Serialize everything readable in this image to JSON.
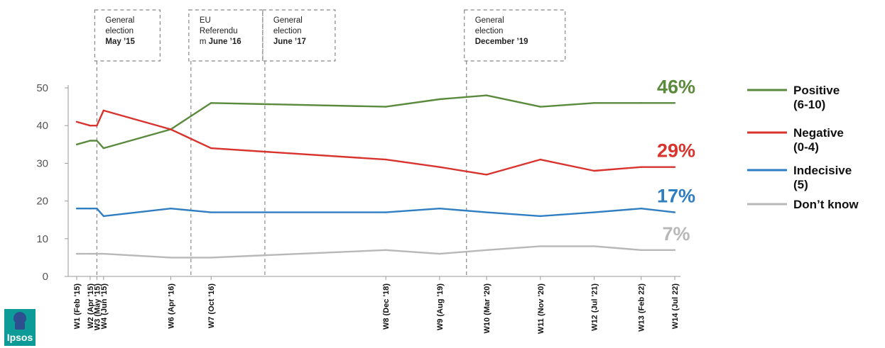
{
  "chart_data": {
    "type": "line",
    "ylim": [
      0,
      50
    ],
    "yticks": [
      0,
      10,
      20,
      30,
      40,
      50
    ],
    "grid": false,
    "legend_position": "right",
    "x_ticks": [
      {
        "label": "W1 (Feb '15)",
        "t": 0
      },
      {
        "label": "W2 (Apr '15)",
        "t": 2
      },
      {
        "label": "W3 (May '15)",
        "t": 3
      },
      {
        "label": "W4 (Jun '15)",
        "t": 4
      },
      {
        "label": "W6 (Apr '16)",
        "t": 14
      },
      {
        "label": "W7 (Oct '16)",
        "t": 20
      },
      {
        "label": "W8 (Dec '18)",
        "t": 46
      },
      {
        "label": "W9 (Aug '19)",
        "t": 54
      },
      {
        "label": "W10 (Mar '20)",
        "t": 61
      },
      {
        "label": "W11 (Nov '20)",
        "t": 69
      },
      {
        "label": "W12 (Jul '21)",
        "t": 77
      },
      {
        "label": "W13 (Feb 22)",
        "t": 84
      },
      {
        "label": "W14 (Jul 22)",
        "t": 89
      }
    ],
    "series": [
      {
        "name": "Positive (6-10)",
        "legend_lines": [
          "Positive",
          "(6-10)"
        ],
        "color": "#5a8a3c",
        "end_label": "46%",
        "values": [
          35,
          36,
          36,
          34,
          39,
          46,
          45,
          47,
          48,
          45,
          46,
          46,
          46
        ]
      },
      {
        "name": "Negative (0-4)",
        "legend_lines": [
          "Negative",
          "(0-4)"
        ],
        "color": "#d9332e",
        "end_label": "29%",
        "values": [
          41,
          40,
          40,
          44,
          39,
          34,
          31,
          29,
          27,
          31,
          28,
          29,
          29
        ]
      },
      {
        "name": "Indecisive (5)",
        "legend_lines": [
          "Indecisive",
          "(5)"
        ],
        "color": "#2f7ec2",
        "end_label": "17%",
        "values": [
          18,
          18,
          18,
          16,
          18,
          17,
          17,
          18,
          17,
          16,
          17,
          18,
          17
        ]
      },
      {
        "name": "Don't know",
        "legend_lines": [
          "Don’t know"
        ],
        "color": "#b8b8b8",
        "end_label": "7%",
        "values": [
          6,
          6,
          6,
          6,
          5,
          5,
          7,
          6,
          7,
          8,
          8,
          7,
          7
        ]
      }
    ],
    "annotations": [
      {
        "t": 3,
        "lines": [
          [
            "General",
            false
          ],
          [
            "election",
            false
          ],
          [
            "May ’15",
            true
          ]
        ]
      },
      {
        "t": 17,
        "lines": [
          [
            "EU",
            false
          ],
          [
            "Referendu",
            false
          ],
          [
            "m ",
            false,
            "June ’16"
          ]
        ]
      },
      {
        "t": 28,
        "lines": [
          [
            "General",
            false
          ],
          [
            "election",
            false
          ],
          [
            "June ’17",
            true
          ]
        ]
      },
      {
        "t": 58,
        "lines": [
          [
            "General",
            false
          ],
          [
            "election",
            false
          ],
          [
            "December ’19",
            true
          ]
        ]
      }
    ]
  },
  "logo": {
    "text": "Ipsos"
  }
}
